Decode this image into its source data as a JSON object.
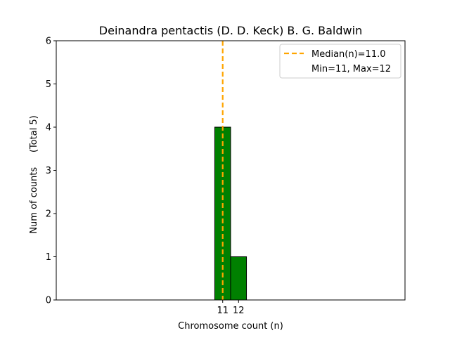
{
  "chart_data": {
    "type": "bar",
    "title": "Deinandra pentactis (D. D. Keck) B. G. Baldwin",
    "xlabel": "Chromosome count (n)",
    "ylabel": "Num of counts     (Total 5)",
    "ylim": [
      0,
      6
    ],
    "xlim": [
      0.5,
      22.5
    ],
    "yticks": [
      0,
      1,
      2,
      3,
      4,
      5,
      6
    ],
    "xticks": [
      11,
      12
    ],
    "bin_width": 1,
    "bins": [
      {
        "x": 11,
        "count": 4
      },
      {
        "x": 12,
        "count": 1
      }
    ],
    "baseline_extent": [
      11,
      16
    ],
    "median": 11.0,
    "min": 11,
    "max": 12,
    "legend": {
      "placement": "top-right",
      "entries": [
        {
          "label": "Median(n)=11.0",
          "style": "dashed-line",
          "color": "#FFA500"
        },
        {
          "label": "Min=11, Max=12",
          "style": "none"
        }
      ]
    },
    "bar_color": "#008000",
    "bar_edge_color": "#000000",
    "grid": false
  }
}
